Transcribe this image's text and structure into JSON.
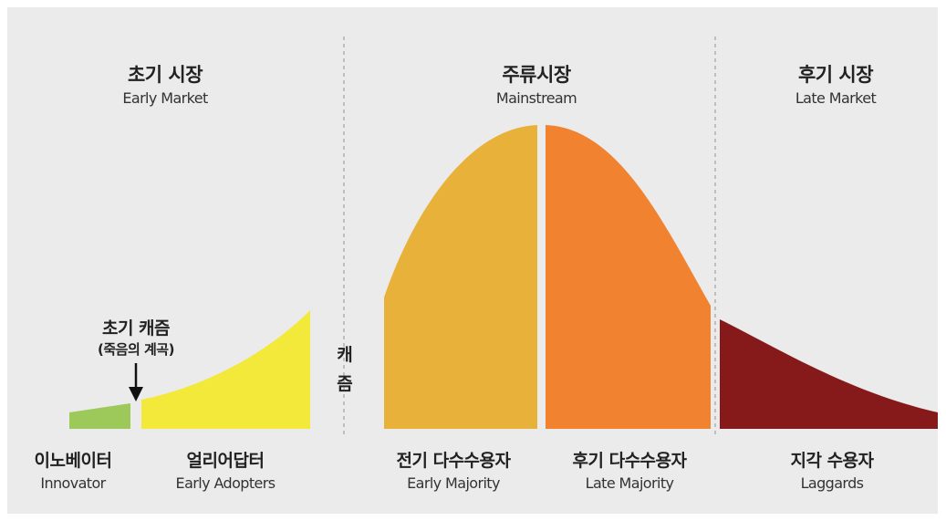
{
  "sections": [
    {
      "ko": "초기 시장",
      "en": "Early Market"
    },
    {
      "ko": "주류시장",
      "en": "Mainstream"
    },
    {
      "ko": "후기 시장",
      "en": "Late Market"
    }
  ],
  "segments": [
    {
      "ko": "이노베이터",
      "en": "Innovator",
      "color": "#9dc85a"
    },
    {
      "ko": "얼리어답터",
      "en": "Early Adopters",
      "color": "#f2e93a"
    },
    {
      "ko": "전기 다수수용자",
      "en": "Early Majority",
      "color": "#e8b23a"
    },
    {
      "ko": "후기 다수수용자",
      "en": "Late Majority",
      "color": "#f08230"
    },
    {
      "ko": "지각 수용자",
      "en": "Laggards",
      "color": "#861a1a"
    }
  ],
  "chasm_early": {
    "title": "초기 캐즘",
    "subtitle": "(죽음의 계곡)"
  },
  "chasm_main": [
    "캐",
    "즘"
  ],
  "colors": {
    "background": "#ebebeb",
    "divider": "#b0b0b0",
    "text": "#222222"
  }
}
